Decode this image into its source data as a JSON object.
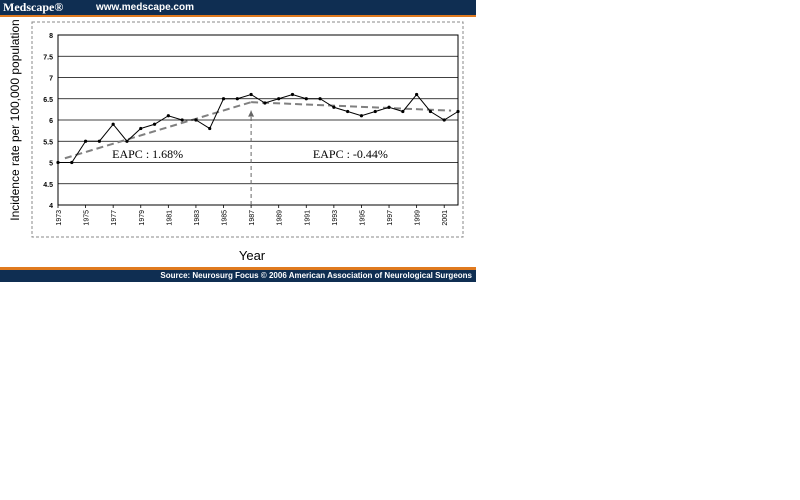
{
  "header": {
    "logo": "Medscape®",
    "url": "www.medscape.com"
  },
  "footer": {
    "source": "Source: Neurosurg Focus © 2006 American Association of Neurological Surgeons"
  },
  "chart_data": {
    "type": "line",
    "xlabel": "Year",
    "ylabel": "Incidence rate per 100,000 population",
    "xlim": [
      1973,
      2002
    ],
    "ylim": [
      4,
      8
    ],
    "y_ticks": [
      "4",
      "4.5",
      "5",
      "5.5",
      "6",
      "6.5",
      "7",
      "7.5",
      "8"
    ],
    "x_ticks": [
      "1973",
      "1975",
      "1977",
      "1979",
      "1981",
      "1983",
      "1985",
      "1987",
      "1989",
      "1991",
      "1993",
      "1995",
      "1997",
      "1999",
      "2001"
    ],
    "grid": "horizontal",
    "series": [
      {
        "x": [
          1973,
          1974,
          1975,
          1976,
          1977,
          1978,
          1979,
          1980,
          1981,
          1982,
          1983,
          1984,
          1985,
          1986,
          1987,
          1988,
          1989,
          1990,
          1991,
          1992,
          1993,
          1994,
          1995,
          1996,
          1997,
          1998,
          1999,
          2000,
          2001,
          2002
        ],
        "values": [
          5.0,
          5.0,
          5.5,
          5.5,
          5.9,
          5.5,
          5.8,
          5.9,
          6.1,
          6.0,
          6.0,
          5.8,
          6.5,
          6.5,
          6.6,
          6.4,
          6.5,
          6.6,
          6.5,
          6.5,
          6.3,
          6.2,
          6.1,
          6.2,
          6.3,
          6.2,
          6.6,
          6.2,
          6.0,
          6.2
        ]
      }
    ],
    "trends": [
      {
        "x": [
          1973.5,
          1987
        ],
        "values": [
          5.1,
          6.42
        ]
      },
      {
        "x": [
          1987,
          2001.5
        ],
        "values": [
          6.42,
          6.22
        ]
      }
    ],
    "divider": {
      "x": 1987
    },
    "annotations": [
      {
        "text": "EAPC : 1.68%",
        "x": 1979.5,
        "y": 5.2
      },
      {
        "text": "EAPC : -0.44%",
        "x": 1994.2,
        "y": 5.2
      }
    ]
  }
}
